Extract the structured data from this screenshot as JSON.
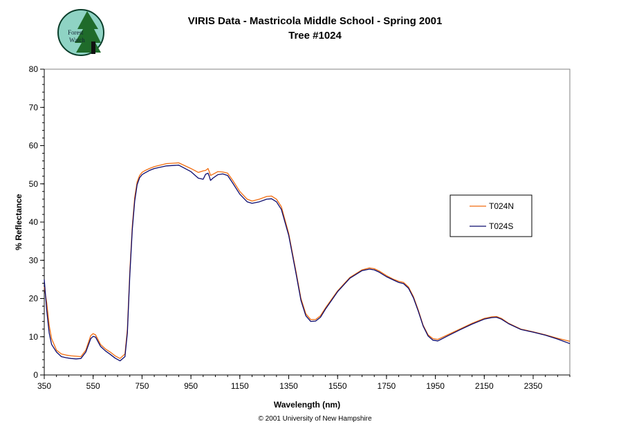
{
  "header": {
    "title_line1": "VIRIS Data - Mastricola Middle School - Spring 2001",
    "title_line2": "Tree #1024",
    "logo_text_line1": "Forest",
    "logo_text_line2": "Watch"
  },
  "footer": {
    "credit": "© 2001 University of New Hampshire"
  },
  "colors": {
    "T024N": "#f26b0d",
    "T024S": "#0a0a6e"
  },
  "chart_data": {
    "type": "line",
    "xlabel": "Wavelength (nm)",
    "ylabel": "% Reflectance",
    "xlim": [
      350,
      2500
    ],
    "ylim": [
      0,
      80
    ],
    "xticks": [
      350,
      550,
      750,
      950,
      1150,
      1350,
      1550,
      1750,
      1950,
      2150,
      2350
    ],
    "yticks": [
      0,
      10,
      20,
      30,
      40,
      50,
      60,
      70,
      80
    ],
    "legend_position": "right",
    "grid": false,
    "series": [
      {
        "name": "T024N",
        "x": [
          350,
          360,
          370,
          380,
          400,
          420,
          440,
          460,
          480,
          500,
          520,
          540,
          550,
          560,
          580,
          600,
          620,
          640,
          660,
          680,
          690,
          700,
          710,
          720,
          730,
          740,
          750,
          760,
          780,
          800,
          850,
          900,
          950,
          980,
          1000,
          1010,
          1020,
          1025,
          1030,
          1040,
          1060,
          1080,
          1100,
          1120,
          1150,
          1180,
          1200,
          1230,
          1260,
          1280,
          1300,
          1320,
          1350,
          1380,
          1400,
          1420,
          1440,
          1460,
          1480,
          1500,
          1550,
          1600,
          1650,
          1680,
          1700,
          1720,
          1750,
          1780,
          1800,
          1820,
          1840,
          1860,
          1880,
          1900,
          1920,
          1940,
          1960,
          2000,
          2050,
          2100,
          2150,
          2180,
          2200,
          2220,
          2250,
          2300,
          2350,
          2400,
          2450,
          2500
        ],
        "y": [
          23,
          19,
          13,
          9.5,
          6.5,
          5.5,
          5.2,
          5,
          4.9,
          4.8,
          6.5,
          10.3,
          10.8,
          10.5,
          8,
          6.8,
          6,
          5,
          4.3,
          5.5,
          12,
          27,
          39,
          46.5,
          50.5,
          52.2,
          53,
          53.4,
          54,
          54.5,
          55.3,
          55.5,
          54,
          53,
          53.4,
          53.5,
          54,
          53.2,
          52.2,
          52.5,
          53.2,
          53.1,
          52.8,
          51,
          48,
          46,
          45.5,
          46,
          46.7,
          46.8,
          46,
          44,
          37,
          27,
          20,
          16,
          14.5,
          14.5,
          15.5,
          17.5,
          22,
          25.5,
          27.5,
          28,
          27.8,
          27.2,
          26,
          25,
          24.5,
          24.2,
          23,
          20.5,
          17,
          13,
          10.5,
          9.5,
          9.3,
          10.5,
          12,
          13.5,
          14.8,
          15.2,
          15.3,
          14.8,
          13.5,
          12,
          11.3,
          10.5,
          9.6,
          8.8
        ]
      },
      {
        "name": "T024S",
        "x": [
          350,
          360,
          370,
          380,
          400,
          420,
          440,
          460,
          480,
          500,
          520,
          540,
          550,
          560,
          580,
          600,
          620,
          640,
          660,
          680,
          690,
          700,
          710,
          720,
          730,
          740,
          750,
          760,
          780,
          800,
          850,
          900,
          950,
          980,
          1000,
          1010,
          1020,
          1025,
          1030,
          1040,
          1060,
          1080,
          1100,
          1120,
          1150,
          1180,
          1200,
          1230,
          1260,
          1280,
          1300,
          1320,
          1350,
          1380,
          1400,
          1420,
          1440,
          1460,
          1480,
          1500,
          1550,
          1600,
          1650,
          1680,
          1700,
          1720,
          1750,
          1780,
          1800,
          1820,
          1840,
          1860,
          1880,
          1900,
          1920,
          1940,
          1960,
          2000,
          2050,
          2100,
          2150,
          2180,
          2200,
          2220,
          2250,
          2300,
          2350,
          2400,
          2450,
          2500
        ],
        "y": [
          25,
          17,
          11,
          8,
          6,
          4.8,
          4.5,
          4.3,
          4.2,
          4.3,
          6,
          9.5,
          10.1,
          9.9,
          7.5,
          6.3,
          5.4,
          4.4,
          3.7,
          4.8,
          11,
          26,
          38,
          45.5,
          49.8,
          51.6,
          52.4,
          52.8,
          53.5,
          54,
          54.7,
          54.9,
          53.2,
          51.5,
          51.2,
          52.5,
          52.8,
          52,
          50.9,
          51.5,
          52.4,
          52.6,
          52.2,
          50.3,
          47.3,
          45.3,
          44.9,
          45.3,
          46,
          46.1,
          45.3,
          43.3,
          36.5,
          26.5,
          19.5,
          15.5,
          14,
          14.1,
          15.1,
          17.2,
          21.8,
          25.3,
          27.3,
          27.7,
          27.5,
          26.9,
          25.7,
          24.8,
          24.2,
          23.9,
          22.7,
          20.2,
          16.7,
          12.8,
          10.2,
          9.1,
          8.9,
          10.2,
          11.8,
          13.3,
          14.6,
          15,
          15.1,
          14.6,
          13.4,
          11.9,
          11.2,
          10.4,
          9.4,
          8.2
        ]
      }
    ]
  }
}
